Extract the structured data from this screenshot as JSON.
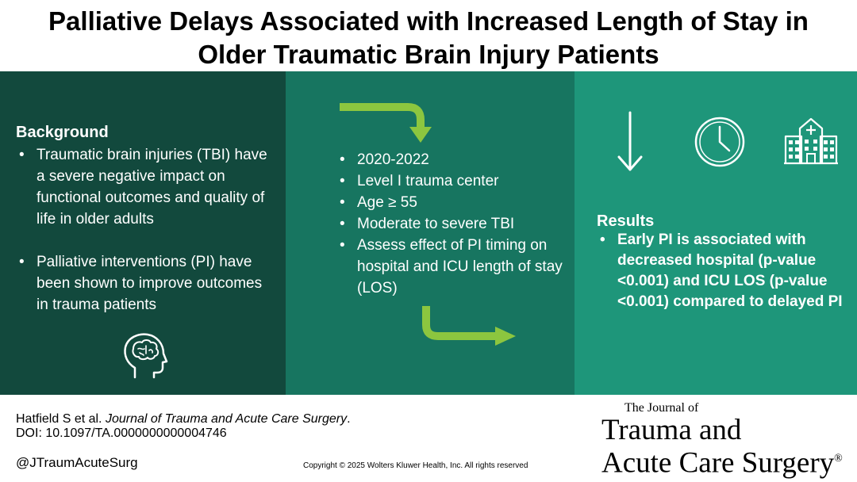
{
  "title": {
    "line1": "Palliative Delays Associated with Increased Length of Stay in",
    "line2": "Older Traumatic Brain Injury Patients"
  },
  "background": {
    "heading": "Background",
    "bullets": [
      "Traumatic brain injuries (TBI) have a severe negative impact on functional outcomes and quality of life in older adults",
      "Palliative interventions (PI) have been shown to improve outcomes in trauma patients"
    ]
  },
  "methods": {
    "bullets": [
      "2020-2022",
      "Level I trauma center",
      "Age ≥ 55",
      "Moderate to severe TBI",
      "Assess effect of PI timing on hospital and ICU length of stay (LOS)"
    ]
  },
  "results": {
    "heading": "Results",
    "bullets": [
      "Early PI is associated with decreased hospital (p-value <0.001) and ICU LOS (p-value <0.001) compared to delayed PI"
    ]
  },
  "icons": {
    "brain": "head-brain-icon",
    "arrow_top": "bent-arrow-down-icon",
    "arrow_bottom": "bent-arrow-right-icon",
    "down": "arrow-down-icon",
    "clock": "clock-icon",
    "hospital": "hospital-icon"
  },
  "colors": {
    "panel1": "#12493d",
    "panel2": "#177560",
    "panel3": "#1e967a",
    "arrow": "#8cc63f"
  },
  "footer": {
    "citation_authors": "Hatfield S et al. ",
    "citation_journal": "Journal of Trauma and Acute Care Surgery",
    "citation_end": ".",
    "doi": "DOI: 10.1097/TA.0000000000004746",
    "handle": "@JTraumAcuteSurg",
    "copyright": "Copyright © 2025  Wolters Kluwer Health, Inc. All rights reserved",
    "journal_small": "The Journal of",
    "journal_line1": "Trauma and",
    "journal_line2": "Acute Care Surgery",
    "journal_mark": "®"
  }
}
